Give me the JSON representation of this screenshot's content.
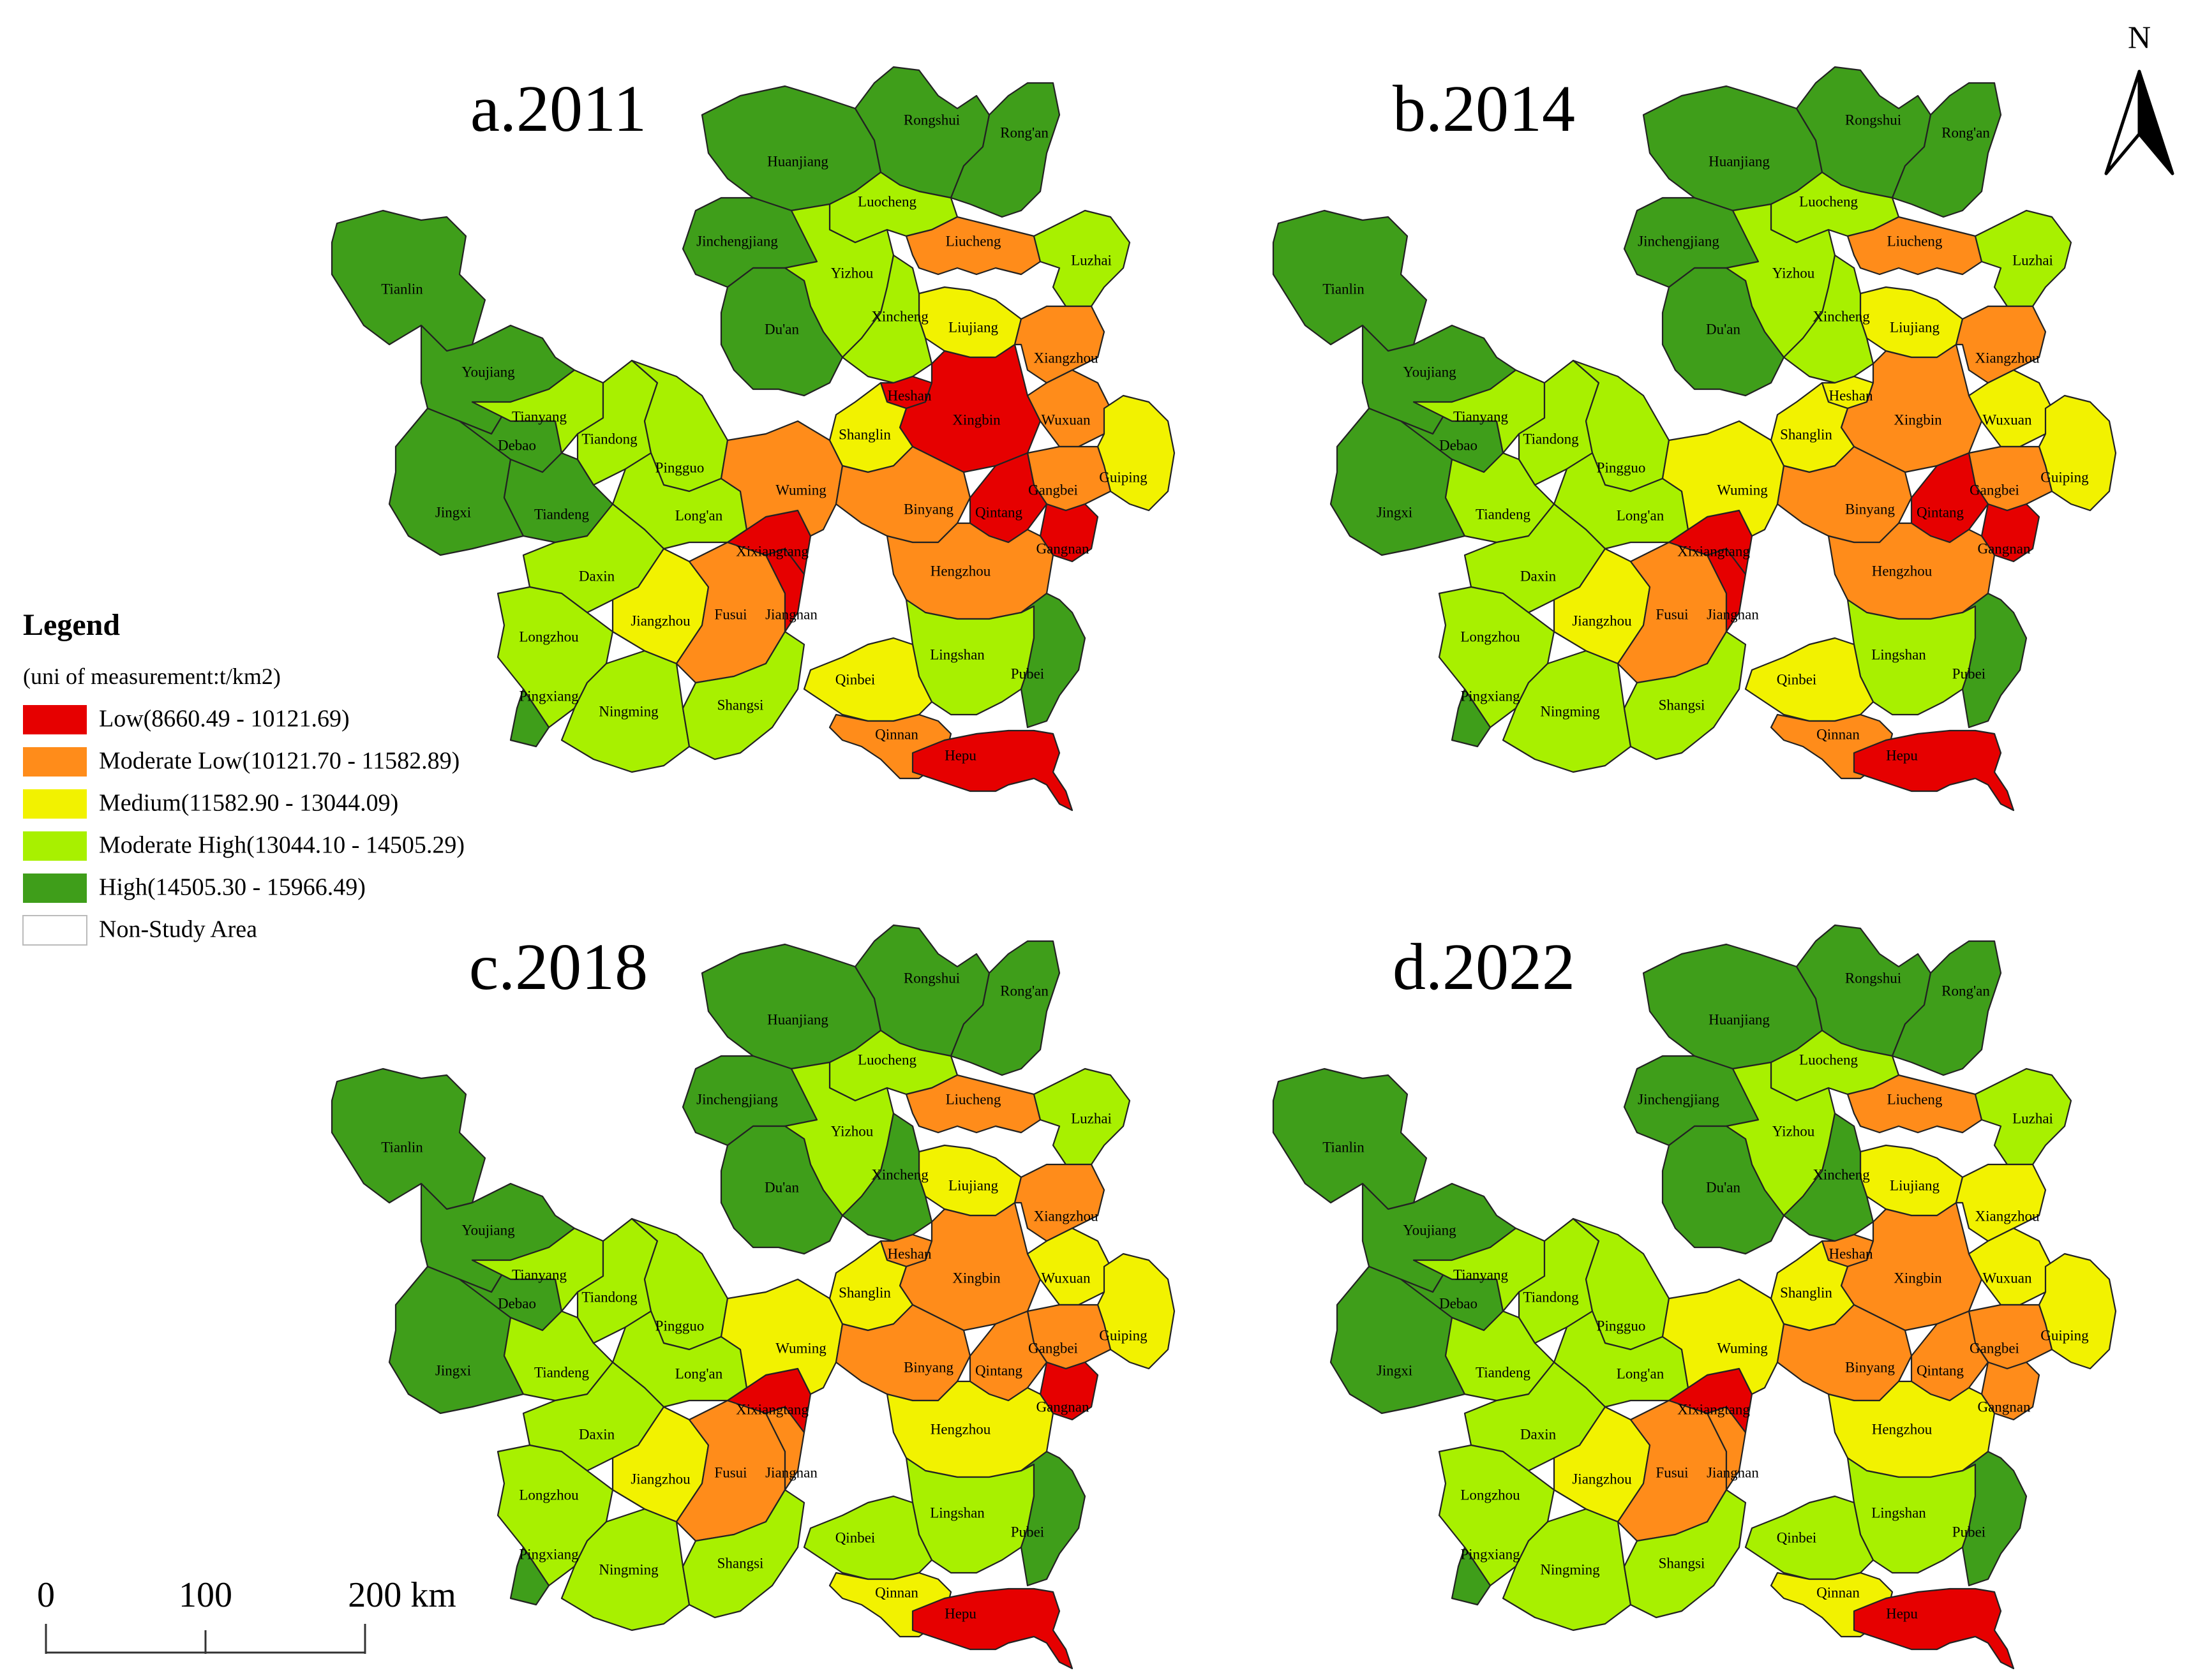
{
  "colors": {
    "Low": "#e60000",
    "Moderate Low": "#ff8c1a",
    "Medium": "#f2f200",
    "Moderate High": "#a8f000",
    "High": "#3f9e1a",
    "Non-Study Area": "#ffffff"
  },
  "legend": {
    "title": "Legend",
    "unit": "(uni of measurement:t/km2)",
    "items": [
      {
        "class": "Low",
        "label": "Low(8660.49 - 10121.69)"
      },
      {
        "class": "Moderate Low",
        "label": "Moderate Low(10121.70 - 11582.89)"
      },
      {
        "class": "Medium",
        "label": "Medium(11582.90 - 13044.09)"
      },
      {
        "class": "Moderate High",
        "label": "Moderate High(13044.10 - 14505.29)"
      },
      {
        "class": "High",
        "label": "High(14505.30 - 15966.49)"
      },
      {
        "class": "Non-Study Area",
        "label": "Non-Study Area"
      }
    ]
  },
  "north_arrow": {
    "label": "N"
  },
  "scale_bar": {
    "labels": [
      "0",
      "100",
      "200 km"
    ]
  },
  "panels": [
    {
      "title": "a.2011",
      "classes": {
        "Tianlin": "High",
        "Youjiang": "High",
        "Jingxi": "High",
        "Debao": "High",
        "Tiandeng": "High",
        "Tianyang": "Moderate High",
        "Tiandong": "Moderate High",
        "Pingguo": "Moderate High",
        "Long'an": "Moderate High",
        "Daxin": "Moderate High",
        "Longzhou": "Moderate High",
        "Pingxiang": "High",
        "Ningming": "Moderate High",
        "Jiangzhou": "Medium",
        "Fusui": "Moderate Low",
        "Jiangnan": "Low",
        "Xixiangtang": "Low",
        "Shangsi": "Moderate High",
        "Wuming": "Moderate Low",
        "Huanjiang": "High",
        "Rongshui": "High",
        "Rong'an": "High",
        "Luocheng": "Moderate High",
        "Jinchengjiang": "High",
        "Yizhou": "Moderate High",
        "Du'an": "High",
        "Liucheng": "Moderate Low",
        "Luzhai": "Moderate High",
        "Liujiang": "Medium",
        "Xincheng": "Moderate High",
        "Xiangzhou": "Moderate Low",
        "Heshan": "Low",
        "Xingbin": "Low",
        "Shanglin": "Medium",
        "Wuxuan": "Moderate Low",
        "Guiping": "Medium",
        "Binyang": "Moderate Low",
        "Gangbei": "Moderate Low",
        "Qintang": "Low",
        "Gangnan": "Low",
        "Hengzhou": "Moderate Low",
        "Lingshan": "Moderate High",
        "Pubei": "High",
        "Qinbei": "Medium",
        "Qinnan": "Moderate Low",
        "Hepu": "Low"
      }
    },
    {
      "title": "b.2014",
      "classes": {
        "Tianlin": "High",
        "Youjiang": "High",
        "Jingxi": "High",
        "Debao": "High",
        "Tiandeng": "Moderate High",
        "Tianyang": "Moderate High",
        "Tiandong": "Moderate High",
        "Pingguo": "Moderate High",
        "Long'an": "Moderate High",
        "Daxin": "Moderate High",
        "Longzhou": "Moderate High",
        "Pingxiang": "High",
        "Ningming": "Moderate High",
        "Jiangzhou": "Medium",
        "Fusui": "Moderate Low",
        "Jiangnan": "Low",
        "Xixiangtang": "Low",
        "Shangsi": "Moderate High",
        "Wuming": "Medium",
        "Huanjiang": "High",
        "Rongshui": "High",
        "Rong'an": "High",
        "Luocheng": "Moderate High",
        "Jinchengjiang": "High",
        "Yizhou": "Moderate High",
        "Du'an": "High",
        "Liucheng": "Moderate Low",
        "Luzhai": "Moderate High",
        "Liujiang": "Medium",
        "Xincheng": "Moderate High",
        "Xiangzhou": "Moderate Low",
        "Heshan": "Medium",
        "Xingbin": "Moderate Low",
        "Shanglin": "Medium",
        "Wuxuan": "Medium",
        "Guiping": "Medium",
        "Binyang": "Moderate Low",
        "Gangbei": "Moderate Low",
        "Qintang": "Low",
        "Gangnan": "Low",
        "Hengzhou": "Moderate Low",
        "Lingshan": "Moderate High",
        "Pubei": "High",
        "Qinbei": "Medium",
        "Qinnan": "Moderate Low",
        "Hepu": "Low"
      }
    },
    {
      "title": "c.2018",
      "classes": {
        "Tianlin": "High",
        "Youjiang": "High",
        "Jingxi": "High",
        "Debao": "High",
        "Tiandeng": "Moderate High",
        "Tianyang": "Moderate High",
        "Tiandong": "Moderate High",
        "Pingguo": "Moderate High",
        "Long'an": "Moderate High",
        "Daxin": "Moderate High",
        "Longzhou": "Moderate High",
        "Pingxiang": "High",
        "Ningming": "Moderate High",
        "Jiangzhou": "Medium",
        "Fusui": "Moderate Low",
        "Jiangnan": "Moderate Low",
        "Xixiangtang": "Low",
        "Shangsi": "Moderate High",
        "Wuming": "Medium",
        "Huanjiang": "High",
        "Rongshui": "High",
        "Rong'an": "High",
        "Luocheng": "Moderate High",
        "Jinchengjiang": "High",
        "Yizhou": "Moderate High",
        "Du'an": "High",
        "Liucheng": "Moderate Low",
        "Luzhai": "Moderate High",
        "Liujiang": "Medium",
        "Xincheng": "High",
        "Xiangzhou": "Moderate Low",
        "Heshan": "Moderate Low",
        "Xingbin": "Moderate Low",
        "Shanglin": "Medium",
        "Wuxuan": "Medium",
        "Guiping": "Medium",
        "Binyang": "Moderate Low",
        "Gangbei": "Moderate Low",
        "Qintang": "Moderate Low",
        "Gangnan": "Low",
        "Hengzhou": "Medium",
        "Lingshan": "Moderate High",
        "Pubei": "High",
        "Qinbei": "Moderate High",
        "Qinnan": "Medium",
        "Hepu": "Low"
      }
    },
    {
      "title": "d.2022",
      "classes": {
        "Tianlin": "High",
        "Youjiang": "High",
        "Jingxi": "High",
        "Debao": "High",
        "Tiandeng": "Moderate High",
        "Tianyang": "Moderate High",
        "Tiandong": "Moderate High",
        "Pingguo": "Moderate High",
        "Long'an": "Moderate High",
        "Daxin": "Moderate High",
        "Longzhou": "Moderate High",
        "Pingxiang": "High",
        "Ningming": "Moderate High",
        "Jiangzhou": "Medium",
        "Fusui": "Moderate Low",
        "Jiangnan": "Moderate Low",
        "Xixiangtang": "Low",
        "Shangsi": "Moderate High",
        "Wuming": "Medium",
        "Huanjiang": "High",
        "Rongshui": "High",
        "Rong'an": "High",
        "Luocheng": "Moderate High",
        "Jinchengjiang": "High",
        "Yizhou": "Moderate High",
        "Du'an": "High",
        "Liucheng": "Moderate Low",
        "Luzhai": "Moderate High",
        "Liujiang": "Medium",
        "Xincheng": "High",
        "Xiangzhou": "Medium",
        "Heshan": "Moderate Low",
        "Xingbin": "Moderate Low",
        "Shanglin": "Medium",
        "Wuxuan": "Medium",
        "Guiping": "Medium",
        "Binyang": "Moderate Low",
        "Gangbei": "Moderate Low",
        "Qintang": "Moderate Low",
        "Gangnan": "Moderate Low",
        "Hengzhou": "Medium",
        "Lingshan": "Moderate High",
        "Pubei": "High",
        "Qinbei": "Moderate High",
        "Qinnan": "Medium",
        "Hepu": "Low"
      }
    }
  ]
}
